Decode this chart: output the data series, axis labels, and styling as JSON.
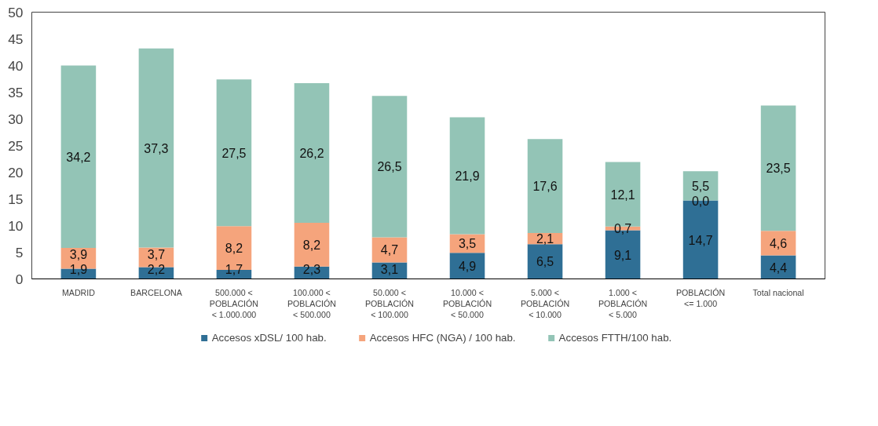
{
  "chart_data": {
    "type": "bar",
    "stacked": true,
    "categories": [
      "MADRID",
      "BARCELONA",
      "500.000 <\nPOBLACIÓN\n< 1.000.000",
      "100.000 <\nPOBLACIÓN\n< 500.000",
      "50.000 <\nPOBLACIÓN\n< 100.000",
      "10.000 <\nPOBLACIÓN\n< 50.000",
      "5.000 <\nPOBLACIÓN\n< 10.000",
      "1.000 <\nPOBLACIÓN\n< 5.000",
      "POBLACIÓN\n<= 1.000",
      "Total nacional"
    ],
    "series": [
      {
        "name": "Accesos xDSL/ 100 hab.",
        "color": "#2f6f95",
        "values": [
          1.9,
          2.2,
          1.7,
          2.3,
          3.1,
          4.9,
          6.5,
          9.1,
          14.7,
          4.4
        ],
        "value_labels": [
          "1,9",
          "2,2",
          "1,7",
          "2,3",
          "3,1",
          "4,9",
          "6,5",
          "9,1",
          "14,7",
          "4,4"
        ]
      },
      {
        "name": "Accesos HFC (NGA) / 100 hab.",
        "color": "#f5a47c",
        "values": [
          3.9,
          3.7,
          8.2,
          8.2,
          4.7,
          3.5,
          2.1,
          0.7,
          0.0,
          4.6
        ],
        "value_labels": [
          "3,9",
          "3,7",
          "8,2",
          "8,2",
          "4,7",
          "3,5",
          "2,1",
          "0,7",
          "0,0",
          "4,6"
        ]
      },
      {
        "name": "Accesos FTTH/100 hab.",
        "color": "#93c4b6",
        "values": [
          34.2,
          37.3,
          27.5,
          26.2,
          26.5,
          21.9,
          17.6,
          12.1,
          5.5,
          23.5
        ],
        "value_labels": [
          "34,2",
          "37,3",
          "27,5",
          "26,2",
          "26,5",
          "21,9",
          "17,6",
          "12,1",
          "5,5",
          "23,5"
        ]
      }
    ],
    "ylim": [
      0,
      50
    ],
    "yticks": [
      0,
      5,
      10,
      15,
      20,
      25,
      30,
      35,
      40,
      45,
      50
    ],
    "grid": false,
    "legend": "bottom"
  }
}
